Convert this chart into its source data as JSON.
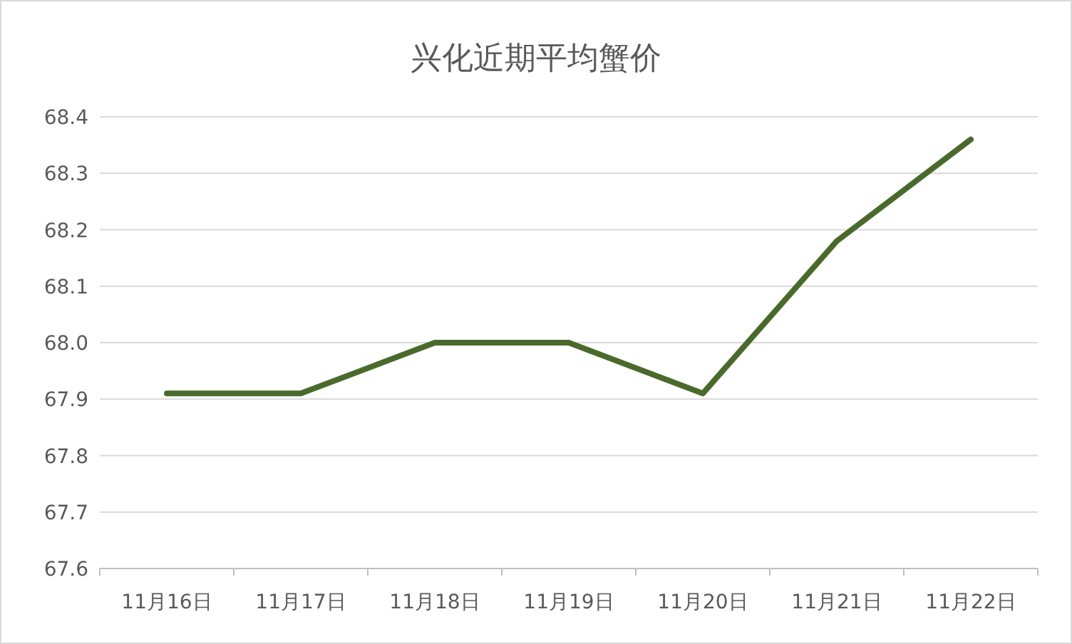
{
  "chart_data": {
    "type": "line",
    "title": "兴化近期平均蟹价",
    "categories": [
      "11月16日",
      "11月17日",
      "11月18日",
      "11月19日",
      "11月20日",
      "11月21日",
      "11月22日"
    ],
    "series": [
      {
        "color": "#4a6a2c",
        "values": [
          67.91,
          67.91,
          68.0,
          68.0,
          67.91,
          68.18,
          68.36
        ]
      }
    ],
    "ylim": [
      67.6,
      68.4
    ],
    "yticks": [
      {
        "value": 67.6,
        "label": "67.6"
      },
      {
        "value": 67.7,
        "label": "67.7"
      },
      {
        "value": 67.8,
        "label": "67.8"
      },
      {
        "value": 67.9,
        "label": "67.9"
      },
      {
        "value": 68.0,
        "label": "68.0"
      },
      {
        "value": 68.1,
        "label": "68.1"
      },
      {
        "value": 68.2,
        "label": "68.2"
      },
      {
        "value": 68.3,
        "label": "68.3"
      },
      {
        "value": 68.4,
        "label": "68.4"
      }
    ],
    "grid": "y"
  }
}
